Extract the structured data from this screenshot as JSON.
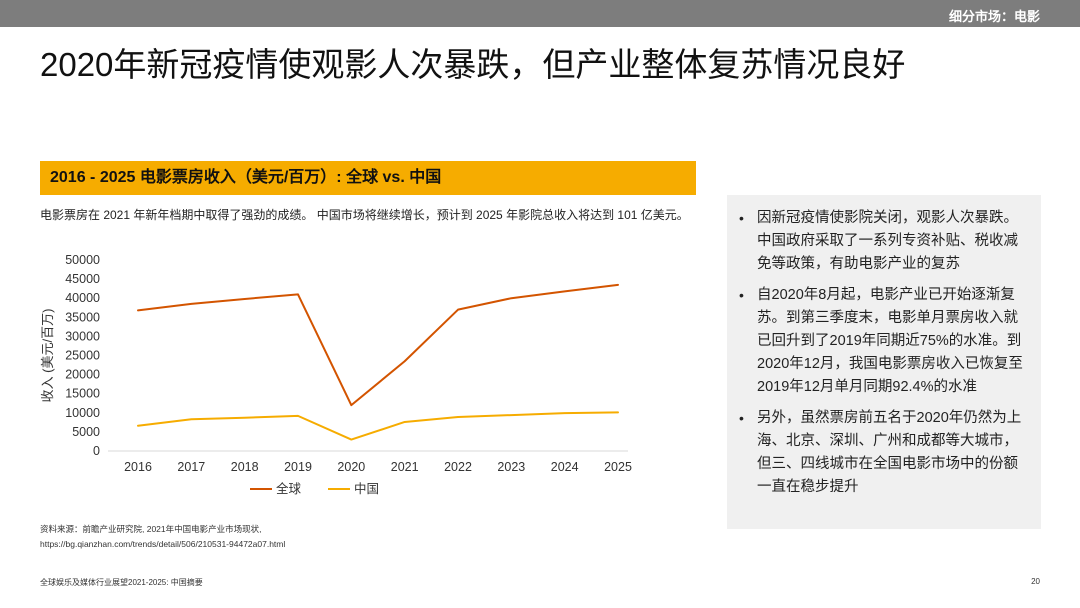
{
  "header": {
    "section_label": "细分市场：电影"
  },
  "page": {
    "title": "2020年新冠疫情使观影人次暴跌，但产业整体复苏情况良好",
    "chart_banner": "2016 - 2025 电影票房收入（美元/百万）: 全球 vs. 中国",
    "intro_text": "电影票房在 2021 年新年档期中取得了强劲的成绩。 中国市场将继续增长，预计到 2025 年影院总收入将达到 101 亿美元。"
  },
  "chart_data": {
    "type": "line",
    "title": "",
    "xlabel": "",
    "ylabel": "收入 (美元/百万)",
    "x": [
      "2016",
      "2017",
      "2018",
      "2019",
      "2020",
      "2021",
      "2022",
      "2023",
      "2024",
      "2025"
    ],
    "ylim": [
      0,
      50000
    ],
    "yticks": [
      0,
      5000,
      10000,
      15000,
      20000,
      25000,
      30000,
      35000,
      40000,
      45000,
      50000
    ],
    "grid": false,
    "legend_position": "bottom",
    "series": [
      {
        "name": "全球",
        "color": "#d35400",
        "values": [
          36800,
          38500,
          39800,
          41000,
          12000,
          23500,
          37000,
          40000,
          41800,
          43500
        ]
      },
      {
        "name": "中国",
        "color": "#f6ac00",
        "values": [
          6600,
          8300,
          8700,
          9200,
          3000,
          7600,
          8900,
          9400,
          9900,
          10100
        ]
      }
    ]
  },
  "side_panel": {
    "bullets": [
      "因新冠疫情使影院关闭，观影人次暴跌。中国政府采取了一系列专资补贴、税收减免等政策，有助电影产业的复苏",
      "自2020年8月起，电影产业已开始逐渐复苏。到第三季度末，电影单月票房收入就已回升到了2019年同期近75%的水准。到2020年12月，我国电影票房收入已恢复至2019年12月单月同期92.4%的水准",
      "另外，虽然票房前五名于2020年仍然为上海、北京、深圳、广州和成都等大城市，但三、四线城市在全国电影市场中的份额一直在稳步提升"
    ]
  },
  "source": {
    "line1": "资料来源：前瞻产业研究院, 2021年中国电影产业市场现状,",
    "line2": "https://bg.qianzhan.com/trends/detail/506/210531-94472a07.html"
  },
  "footer": {
    "left": "全球娱乐及媒体行业展望2021-2025: 中国摘要",
    "page_number": "20"
  }
}
